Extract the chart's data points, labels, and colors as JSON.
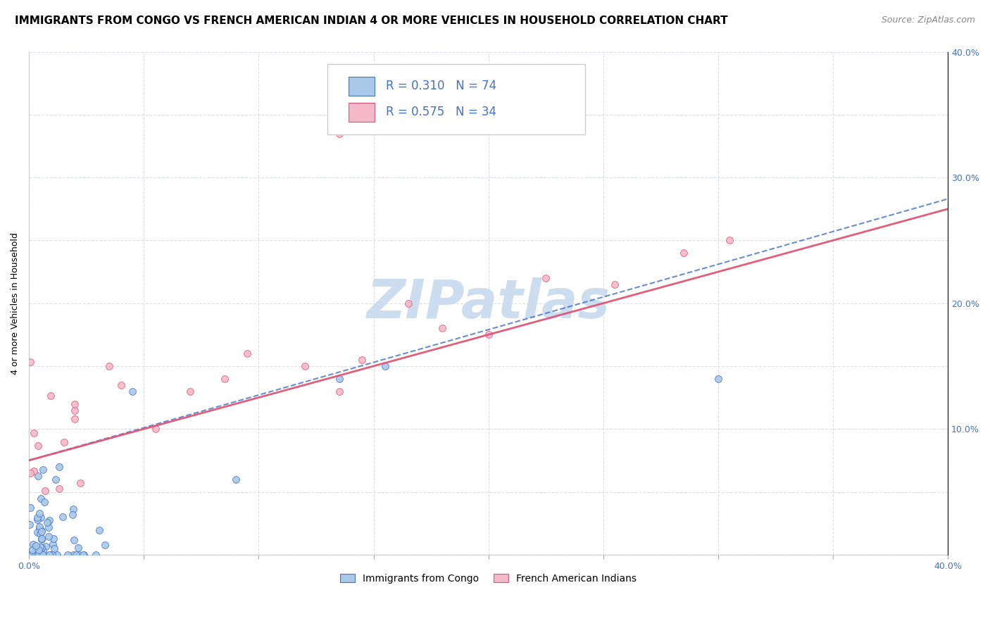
{
  "title": "IMMIGRANTS FROM CONGO VS FRENCH AMERICAN INDIAN 4 OR MORE VEHICLES IN HOUSEHOLD CORRELATION CHART",
  "source": "Source: ZipAtlas.com",
  "ylabel_label": "4 or more Vehicles in Household",
  "legend_label_bottom_left": "Immigrants from Congo",
  "legend_label_bottom_right": "French American Indians",
  "blue_R": "R = 0.310",
  "blue_N": "N = 74",
  "pink_R": "R = 0.575",
  "pink_N": "N = 34",
  "blue_scatter_color": "#a8c8e8",
  "blue_edge_color": "#4472c4",
  "pink_scatter_color": "#f4b8c8",
  "pink_edge_color": "#e05575",
  "blue_line_color": "#4472c4",
  "pink_line_color": "#e05575",
  "watermark": "ZIPatlas",
  "watermark_color": "#ccddef",
  "watermark_fontsize": 55,
  "xlim": [
    0.0,
    0.4
  ],
  "ylim": [
    0.0,
    0.4
  ],
  "title_fontsize": 11,
  "source_fontsize": 9,
  "axis_label_fontsize": 9,
  "tick_label_color": "#4472c4",
  "tick_fontsize": 9,
  "grid_color": "#d8dce8",
  "legend_text_color": "#4472c4",
  "legend_fontsize": 12
}
